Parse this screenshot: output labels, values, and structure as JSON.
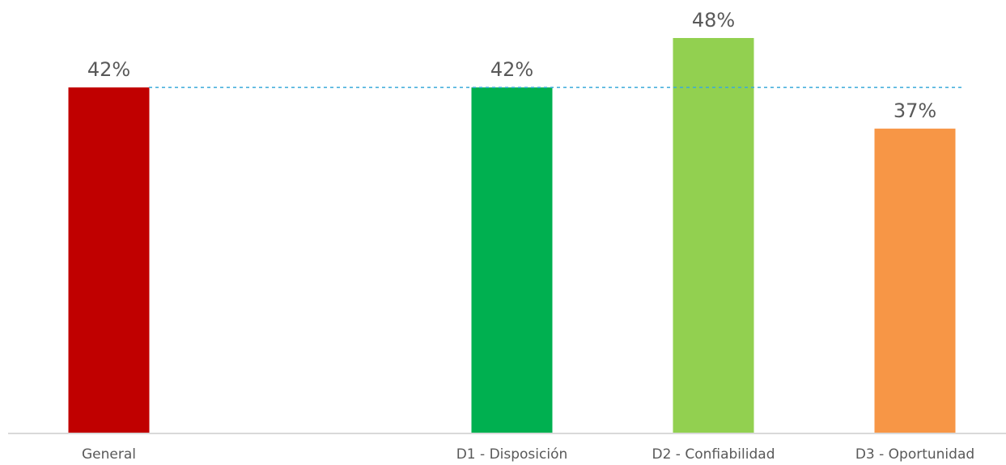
{
  "chart_data": {
    "type": "bar",
    "categories": [
      "General",
      "",
      "D1 - Disposición",
      "D2 - Confiabilidad",
      "D3 - Oportunidad"
    ],
    "values": [
      42,
      null,
      42,
      48,
      37
    ],
    "data_labels": [
      "42%",
      "",
      "42%",
      "48%",
      "37%"
    ],
    "colors": [
      "#C00000",
      "",
      "#00B050",
      "#92D050",
      "#F79646"
    ],
    "reference_line": {
      "value": 42,
      "style": "dashed",
      "color": "#3AAAD9"
    },
    "ylim": [
      0,
      55
    ],
    "title": "",
    "xlabel": "",
    "ylabel": "",
    "grid": false,
    "legend": "none"
  }
}
